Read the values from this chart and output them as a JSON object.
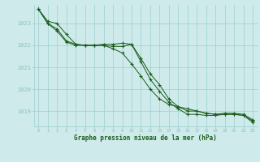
{
  "title": "Graphe pression niveau de la mer (hPa)",
  "xlabel_ticks": [
    0,
    1,
    2,
    3,
    4,
    5,
    6,
    7,
    8,
    9,
    10,
    11,
    12,
    13,
    14,
    15,
    16,
    17,
    18,
    19,
    20,
    21,
    22,
    23
  ],
  "ylim": [
    1018.3,
    1023.85
  ],
  "yticks": [
    1019,
    1020,
    1021,
    1022,
    1023
  ],
  "background_color": "#ceeaea",
  "grid_color": "#9dcfcf",
  "line_color": "#1a5c1a",
  "series1": [
    1023.65,
    1023.1,
    1023.0,
    1022.5,
    1022.05,
    1022.0,
    1022.0,
    1022.05,
    1022.05,
    1022.1,
    1022.05,
    1021.4,
    1020.7,
    1020.2,
    1019.55,
    1019.2,
    1019.1,
    1019.0,
    1018.9,
    1018.85,
    1018.9,
    1018.9,
    1018.85,
    1018.6
  ],
  "series2": [
    1023.65,
    1023.0,
    1022.75,
    1022.2,
    1022.05,
    1022.0,
    1022.0,
    1022.0,
    1021.95,
    1021.95,
    1022.05,
    1021.25,
    1020.45,
    1019.9,
    1019.4,
    1019.1,
    1018.85,
    1018.85,
    1018.8,
    1018.8,
    1018.85,
    1018.85,
    1018.8,
    1018.55
  ],
  "series3": [
    1023.65,
    1023.0,
    1022.65,
    1022.15,
    1022.0,
    1022.0,
    1022.0,
    1022.0,
    1021.85,
    1021.65,
    1021.15,
    1020.6,
    1020.0,
    1019.55,
    1019.3,
    1019.2,
    1019.0,
    1019.0,
    1018.9,
    1018.85,
    1018.85,
    1018.85,
    1018.8,
    1018.48
  ]
}
